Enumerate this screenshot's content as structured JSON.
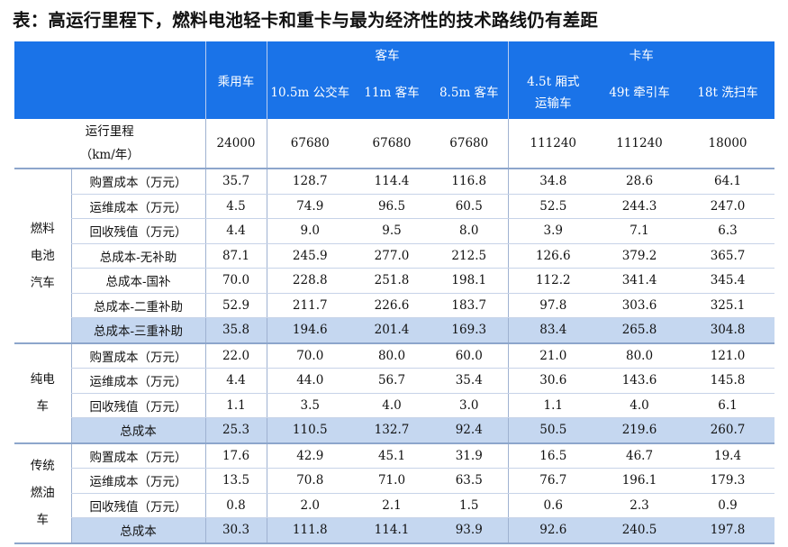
{
  "title": "表：高运行里程下，燃料电池轻卡和重卡与最为经济性的技术路线仍有差距",
  "header": {
    "passenger": "乘用车",
    "bus_group": "客车",
    "truck_group": "卡车",
    "bus_105": "10.5m 公交车",
    "bus_11": "11m 客车",
    "bus_85": "8.5m 客车",
    "truck_45_l1": "4.5t 厢式",
    "truck_45_l2": "运输车",
    "truck_49": "49t 牵引车",
    "truck_18": "18t 洗扫车"
  },
  "mileage": {
    "label_l1": "运行里程",
    "label_l2": "（km/年）",
    "values": [
      "24000",
      "67680",
      "67680",
      "67680",
      "111240",
      "111240",
      "18000"
    ]
  },
  "groups": [
    {
      "name_lines": [
        "燃料",
        "电池",
        "汽车"
      ],
      "rows": [
        {
          "label": "购置成本（万元）",
          "values": [
            "35.7",
            "128.7",
            "114.4",
            "116.8",
            "34.8",
            "28.6",
            "64.1"
          ],
          "highlight": false
        },
        {
          "label": "运维成本（万元）",
          "values": [
            "4.5",
            "74.9",
            "96.5",
            "60.5",
            "52.5",
            "244.3",
            "247.0"
          ],
          "highlight": false
        },
        {
          "label": "回收残值（万元）",
          "values": [
            "4.4",
            "9.0",
            "9.5",
            "8.0",
            "3.9",
            "7.1",
            "6.3"
          ],
          "highlight": false
        },
        {
          "label": "总成本-无补助",
          "values": [
            "87.1",
            "245.9",
            "277.0",
            "212.5",
            "126.6",
            "379.2",
            "365.7"
          ],
          "highlight": false
        },
        {
          "label": "总成本-国补",
          "values": [
            "70.0",
            "228.8",
            "251.8",
            "198.1",
            "112.2",
            "341.4",
            "345.4"
          ],
          "highlight": false
        },
        {
          "label": "总成本-二重补助",
          "values": [
            "52.9",
            "211.7",
            "226.6",
            "183.7",
            "97.8",
            "303.6",
            "325.1"
          ],
          "highlight": false
        },
        {
          "label": "总成本-三重补助",
          "values": [
            "35.8",
            "194.6",
            "201.4",
            "169.3",
            "83.4",
            "265.8",
            "304.8"
          ],
          "highlight": true
        }
      ]
    },
    {
      "name_lines": [
        "纯电",
        "车"
      ],
      "rows": [
        {
          "label": "购置成本（万元）",
          "values": [
            "22.0",
            "70.0",
            "80.0",
            "60.0",
            "21.0",
            "80.0",
            "121.0"
          ],
          "highlight": false
        },
        {
          "label": "运维成本（万元）",
          "values": [
            "4.4",
            "44.0",
            "56.7",
            "35.4",
            "30.6",
            "143.6",
            "145.8"
          ],
          "highlight": false
        },
        {
          "label": "回收残值（万元）",
          "values": [
            "1.1",
            "3.5",
            "4.0",
            "3.0",
            "1.1",
            "4.0",
            "6.1"
          ],
          "highlight": false
        },
        {
          "label": "总成本",
          "values": [
            "25.3",
            "110.5",
            "132.7",
            "92.4",
            "50.5",
            "219.6",
            "260.7"
          ],
          "highlight": true
        }
      ]
    },
    {
      "name_lines": [
        "传统",
        "燃油",
        "车"
      ],
      "rows": [
        {
          "label": "购置成本（万元）",
          "values": [
            "17.6",
            "42.9",
            "45.1",
            "31.9",
            "16.5",
            "46.7",
            "19.4"
          ],
          "highlight": false
        },
        {
          "label": "运维成本（万元）",
          "values": [
            "13.5",
            "70.8",
            "71.0",
            "63.5",
            "76.7",
            "196.1",
            "179.3"
          ],
          "highlight": false
        },
        {
          "label": "回收残值（万元）",
          "values": [
            "0.8",
            "2.0",
            "2.1",
            "1.5",
            "0.6",
            "2.3",
            "0.9"
          ],
          "highlight": false
        },
        {
          "label": "总成本",
          "values": [
            "30.3",
            "111.8",
            "114.1",
            "93.9",
            "92.6",
            "240.5",
            "197.8"
          ],
          "highlight": true
        }
      ]
    }
  ],
  "colors": {
    "header_bg": "#1a73e8",
    "highlight_bg": "#c5d7f0",
    "grid": "#c7d3e8"
  }
}
